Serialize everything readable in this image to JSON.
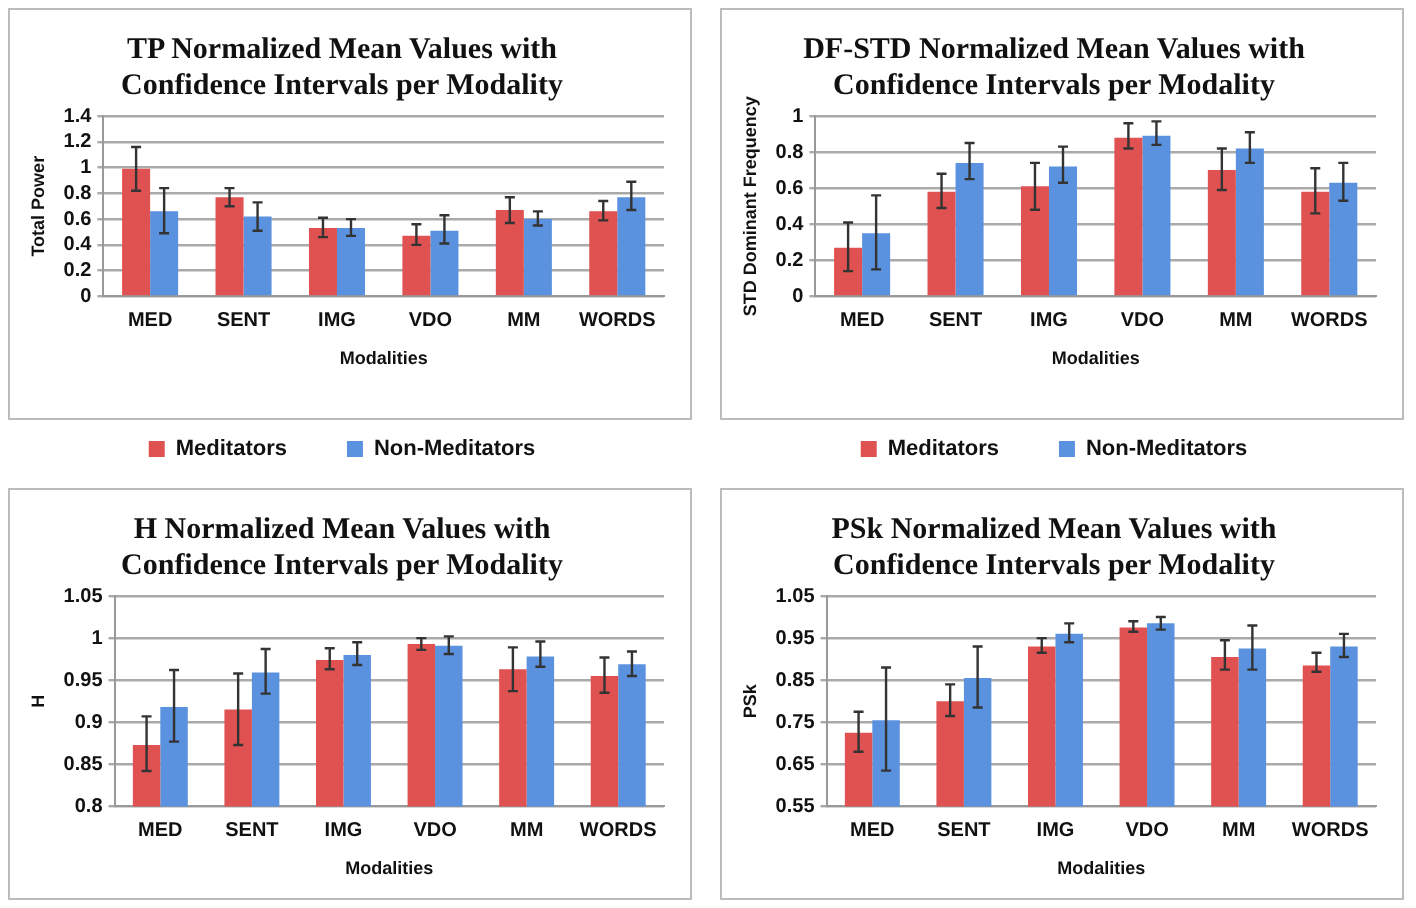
{
  "chart_data": [
    {
      "type": "bar",
      "title": "TP Normalized Mean Values with Confidence Intervals per Modality",
      "xlabel": "Modalities",
      "ylabel": "Total Power",
      "categories": [
        "MED",
        "SENT",
        "IMG",
        "VDO",
        "MM",
        "WORDS"
      ],
      "ylim": [
        0,
        1.4
      ],
      "yticks": [
        0,
        0.2,
        0.4,
        0.6,
        0.8,
        1,
        1.2,
        1.4
      ],
      "grid": "y",
      "legend": "bottom",
      "series": [
        {
          "name": "Meditators",
          "color": "#e05252",
          "values": [
            0.99,
            0.77,
            0.53,
            0.47,
            0.67,
            0.66
          ],
          "errors": [
            [
              0.82,
              1.16
            ],
            [
              0.7,
              0.84
            ],
            [
              0.46,
              0.61
            ],
            [
              0.4,
              0.56
            ],
            [
              0.57,
              0.77
            ],
            [
              0.59,
              0.74
            ]
          ]
        },
        {
          "name": "Non-Meditators",
          "color": "#5b92e0",
          "values": [
            0.66,
            0.62,
            0.53,
            0.51,
            0.6,
            0.77
          ],
          "errors": [
            [
              0.49,
              0.84
            ],
            [
              0.51,
              0.73
            ],
            [
              0.47,
              0.6
            ],
            [
              0.41,
              0.63
            ],
            [
              0.55,
              0.66
            ],
            [
              0.67,
              0.89
            ]
          ]
        }
      ]
    },
    {
      "type": "bar",
      "title": "DF-STD Normalized Mean Values with Confidence Intervals per Modality",
      "xlabel": "Modalities",
      "ylabel": "STD Dominant Frequency",
      "categories": [
        "MED",
        "SENT",
        "IMG",
        "VDO",
        "MM",
        "WORDS"
      ],
      "ylim": [
        0,
        1
      ],
      "yticks": [
        0,
        0.2,
        0.4,
        0.6,
        0.8,
        1
      ],
      "grid": "y",
      "legend": "bottom",
      "series": [
        {
          "name": "Meditators",
          "color": "#e05252",
          "values": [
            0.27,
            0.58,
            0.61,
            0.88,
            0.7,
            0.58
          ],
          "errors": [
            [
              0.14,
              0.41
            ],
            [
              0.49,
              0.68
            ],
            [
              0.48,
              0.74
            ],
            [
              0.82,
              0.96
            ],
            [
              0.59,
              0.82
            ],
            [
              0.46,
              0.71
            ]
          ]
        },
        {
          "name": "Non-Meditators",
          "color": "#5b92e0",
          "values": [
            0.35,
            0.74,
            0.72,
            0.89,
            0.82,
            0.63
          ],
          "errors": [
            [
              0.15,
              0.56
            ],
            [
              0.65,
              0.85
            ],
            [
              0.63,
              0.83
            ],
            [
              0.84,
              0.97
            ],
            [
              0.74,
              0.91
            ],
            [
              0.53,
              0.74
            ]
          ]
        }
      ]
    },
    {
      "type": "bar",
      "title": "H Normalized Mean Values with Confidence Intervals per Modality",
      "xlabel": "Modalities",
      "ylabel": "H",
      "categories": [
        "MED",
        "SENT",
        "IMG",
        "VDO",
        "MM",
        "WORDS"
      ],
      "ylim": [
        0.8,
        1.05
      ],
      "yticks": [
        0.8,
        0.85,
        0.9,
        0.95,
        1,
        1.05
      ],
      "grid": "y",
      "series": [
        {
          "color": "#e05252",
          "values": [
            0.873,
            0.915,
            0.974,
            0.993,
            0.963,
            0.955
          ],
          "errors": [
            [
              0.842,
              0.907
            ],
            [
              0.873,
              0.958
            ],
            [
              0.963,
              0.988
            ],
            [
              0.986,
              1.0
            ],
            [
              0.937,
              0.989
            ],
            [
              0.935,
              0.977
            ]
          ]
        },
        {
          "color": "#5b92e0",
          "values": [
            0.918,
            0.959,
            0.98,
            0.991,
            0.978,
            0.969
          ],
          "errors": [
            [
              0.877,
              0.962
            ],
            [
              0.934,
              0.987
            ],
            [
              0.968,
              0.995
            ],
            [
              0.981,
              1.002
            ],
            [
              0.966,
              0.996
            ],
            [
              0.955,
              0.984
            ]
          ]
        }
      ]
    },
    {
      "type": "bar",
      "title": "PSk Normalized Mean Values with Confidence Intervals per Modality",
      "xlabel": "Modalities",
      "ylabel": "PSk",
      "categories": [
        "MED",
        "SENT",
        "IMG",
        "VDO",
        "MM",
        "WORDS"
      ],
      "ylim": [
        0.55,
        1.05
      ],
      "yticks": [
        0.55,
        0.65,
        0.75,
        0.85,
        0.95,
        1.05
      ],
      "grid": "y",
      "series": [
        {
          "color": "#e05252",
          "values": [
            0.725,
            0.8,
            0.93,
            0.975,
            0.905,
            0.885
          ],
          "errors": [
            [
              0.68,
              0.775
            ],
            [
              0.765,
              0.84
            ],
            [
              0.915,
              0.95
            ],
            [
              0.965,
              0.99
            ],
            [
              0.875,
              0.945
            ],
            [
              0.87,
              0.915
            ]
          ]
        },
        {
          "color": "#5b92e0",
          "values": [
            0.755,
            0.855,
            0.96,
            0.985,
            0.925,
            0.93
          ],
          "errors": [
            [
              0.635,
              0.88
            ],
            [
              0.785,
              0.93
            ],
            [
              0.94,
              0.985
            ],
            [
              0.97,
              1.0
            ],
            [
              0.875,
              0.98
            ],
            [
              0.905,
              0.96
            ]
          ]
        }
      ]
    }
  ]
}
